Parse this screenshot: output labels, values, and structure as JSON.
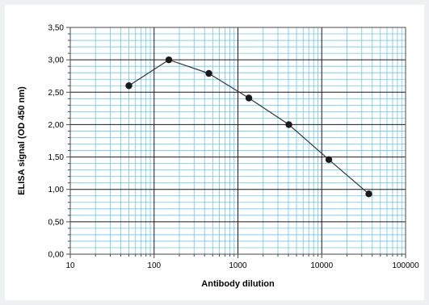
{
  "chart_data": {
    "type": "line",
    "title": "",
    "xlabel": "Antibody dilution",
    "ylabel": "ELISA signal (OD 450 nm)",
    "x_scale": "log",
    "xlim": [
      10,
      100000
    ],
    "ylim": [
      0,
      3.5
    ],
    "x_ticks": [
      "10",
      "100",
      "1000",
      "10000",
      "100000"
    ],
    "y_ticks": [
      "0,00",
      "0,50",
      "1,00",
      "1,50",
      "2,00",
      "2,50",
      "3,00",
      "3,50"
    ],
    "grid": true,
    "legend": "none",
    "series": [
      {
        "x": [
          50,
          150,
          450,
          1350,
          4050,
          12150,
          36450
        ],
        "values": [
          2.6,
          3.0,
          2.79,
          2.41,
          2.0,
          1.46,
          0.93
        ]
      }
    ],
    "colors": {
      "line": "#333333",
      "marker": "#1a1a1a",
      "major_grid": "#1a1a1a",
      "minor_grid": "#6fc6e6",
      "frame": "#4a4a4a"
    }
  }
}
